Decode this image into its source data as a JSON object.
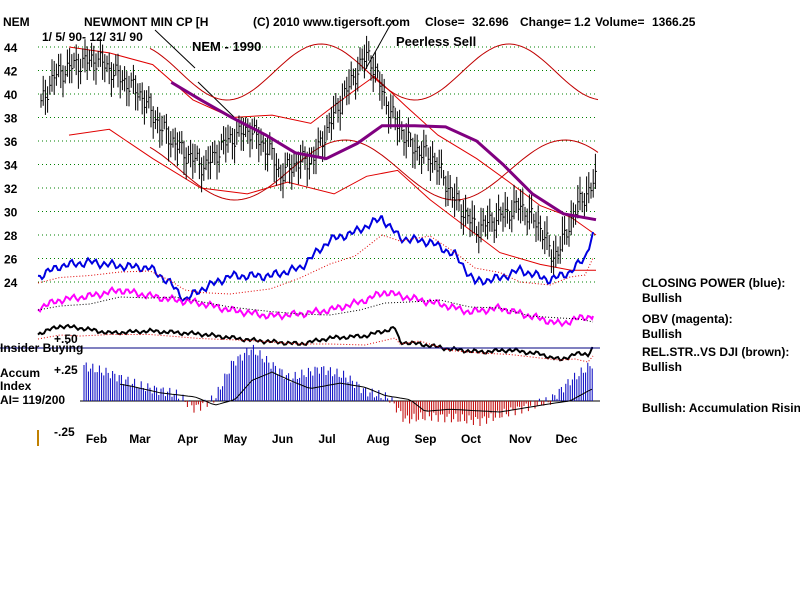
{
  "header": {
    "symbol": "NEM",
    "company": "NEWMONT MIN CP [H",
    "copyright": "(C) 2010 www.tigersoft.com",
    "close_label": "Close=",
    "close_value": "32.696",
    "change_label": "Change=",
    "change_value": "1.2",
    "volume_label": "Volume=",
    "volume_value": "1366.25",
    "date_range": "1/ 5/ 90- 12/ 31/ 90"
  },
  "annotations": {
    "chart_title": "NEM - 1990",
    "signal": "Peerless Sell"
  },
  "panel_labels": {
    "insider": "Insider Buying",
    "plus50": "+.50",
    "plus25": "+.25",
    "minus25": "-.25",
    "accum_line1": "Accum",
    "accum_line2": "Index",
    "accum_line3": "AI= 119/200"
  },
  "side_notes": [
    {
      "title": "CLOSING POWER (blue):",
      "status": "Bullish"
    },
    {
      "title": "OBV (magenta):",
      "status": "Bullish"
    },
    {
      "title": "REL.STR..VS DJI (brown):",
      "status": "Bullish"
    },
    {
      "title": "Bullish: Accumulation Rising",
      "status": ""
    }
  ],
  "colors": {
    "price": "#000000",
    "bands": "#e00000",
    "ma": "#800080",
    "closing_power": "#0000e0",
    "obv": "#ff00ff",
    "rel_strength": "#000000",
    "accum_pos": "#0000c0",
    "accum_neg": "#c00000",
    "grid": "#008000"
  },
  "chart_data": {
    "type": "line",
    "title": "NEM - 1990",
    "yticks": [
      24,
      26,
      28,
      30,
      32,
      34,
      36,
      38,
      40,
      42,
      44
    ],
    "ylim": [
      22.5,
      44.5
    ],
    "months": [
      "Feb",
      "Mar",
      "Apr",
      "May",
      "Jun",
      "Jul",
      "Aug",
      "Sep",
      "Oct",
      "Nov",
      "Dec"
    ],
    "price_path": [
      [
        "1990-01-05",
        38.5
      ],
      [
        "1990-01-15",
        41.5
      ],
      [
        "1990-01-29",
        42.5
      ],
      [
        "1990-02-12",
        43.0
      ],
      [
        "1990-02-26",
        41.5
      ],
      [
        "1990-03-12",
        40.0
      ],
      [
        "1990-03-26",
        37.0
      ],
      [
        "1990-04-09",
        35.0
      ],
      [
        "1990-04-23",
        33.8
      ],
      [
        "1990-05-07",
        36.0
      ],
      [
        "1990-05-21",
        37.0
      ],
      [
        "1990-06-04",
        35.0
      ],
      [
        "1990-06-11",
        33.0
      ],
      [
        "1990-06-18",
        34.0
      ],
      [
        "1990-07-02",
        34.5
      ],
      [
        "1990-07-16",
        38.5
      ],
      [
        "1990-07-30",
        42.0
      ],
      [
        "1990-08-06",
        43.5
      ],
      [
        "1990-08-13",
        41.0
      ],
      [
        "1990-08-20",
        38.5
      ],
      [
        "1990-09-03",
        35.5
      ],
      [
        "1990-09-17",
        34.5
      ],
      [
        "1990-10-01",
        31.0
      ],
      [
        "1990-10-15",
        28.5
      ],
      [
        "1990-10-29",
        29.5
      ],
      [
        "1990-11-12",
        30.5
      ],
      [
        "1990-11-26",
        28.5
      ],
      [
        "1990-12-03",
        26.0
      ],
      [
        "1990-12-10",
        27.5
      ],
      [
        "1990-12-17",
        30.0
      ],
      [
        "1990-12-31",
        32.7
      ]
    ],
    "ma_path": [
      [
        "1990-04-01",
        41.0
      ],
      [
        "1990-04-20",
        39.5
      ],
      [
        "1990-05-10",
        38.0
      ],
      [
        "1990-06-01",
        36.5
      ],
      [
        "1990-06-20",
        35.0
      ],
      [
        "1990-07-10",
        34.5
      ],
      [
        "1990-07-30",
        35.8
      ],
      [
        "1990-08-15",
        37.3
      ],
      [
        "1990-09-05",
        37.3
      ],
      [
        "1990-09-25",
        37.2
      ],
      [
        "1990-10-15",
        36.0
      ],
      [
        "1990-11-01",
        34.0
      ],
      [
        "1990-11-20",
        31.5
      ],
      [
        "1990-12-10",
        29.8
      ],
      [
        "1990-12-31",
        29.3
      ]
    ],
    "upper_band": [
      [
        "1990-01-25",
        44.0
      ],
      [
        "1990-02-20",
        43.5
      ],
      [
        "1990-03-20",
        42.5
      ],
      [
        "1990-04-15",
        39.5
      ],
      [
        "1990-05-10",
        38.0
      ],
      [
        "1990-06-05",
        38.2
      ],
      [
        "1990-06-30",
        37.5
      ],
      [
        "1990-07-25",
        40.0
      ],
      [
        "1990-08-10",
        41.5
      ],
      [
        "1990-08-30",
        39.0
      ],
      [
        "1990-09-20",
        36.5
      ],
      [
        "1990-10-15",
        34.5
      ],
      [
        "1990-11-05",
        32.5
      ],
      [
        "1990-11-25",
        30.5
      ],
      [
        "1990-12-15",
        29.5
      ],
      [
        "1990-12-31",
        28.0
      ]
    ],
    "lower_band": [
      [
        "1990-01-25",
        36.5
      ],
      [
        "1990-02-20",
        37.0
      ],
      [
        "1990-03-20",
        34.5
      ],
      [
        "1990-04-20",
        32.0
      ],
      [
        "1990-05-20",
        31.5
      ],
      [
        "1990-06-15",
        32.5
      ],
      [
        "1990-07-15",
        31.5
      ],
      [
        "1990-08-05",
        33.0
      ],
      [
        "1990-08-25",
        33.5
      ],
      [
        "1990-09-15",
        31.0
      ],
      [
        "1990-10-10",
        28.5
      ],
      [
        "1990-10-30",
        26.5
      ],
      [
        "1990-11-25",
        25.5
      ],
      [
        "1990-12-15",
        25.0
      ],
      [
        "1990-12-31",
        25.0
      ]
    ]
  }
}
